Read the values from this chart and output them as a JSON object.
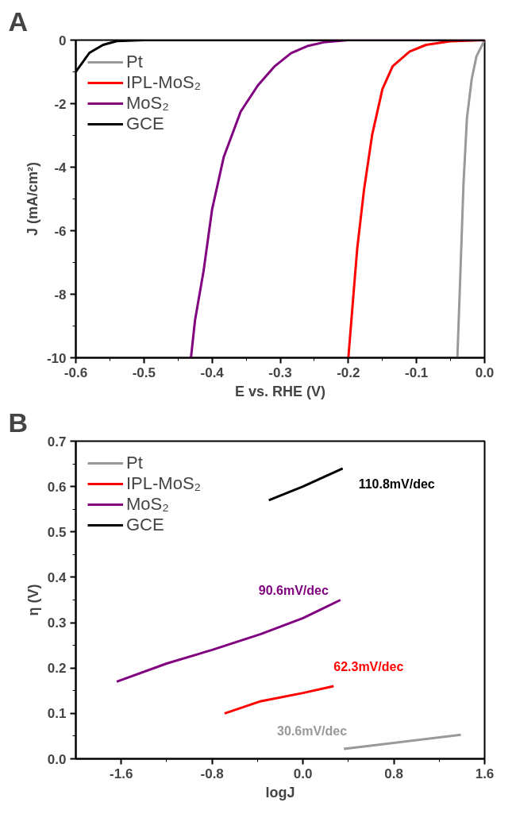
{
  "chart_data": [
    {
      "type": "line",
      "title": "A",
      "xlabel": "E vs. RHE (V)",
      "ylabel": "J (mA/cm²)",
      "xlim": [
        -0.6,
        0.0
      ],
      "ylim": [
        -10,
        0
      ],
      "xticks": [
        -0.6,
        -0.5,
        -0.4,
        -0.3,
        -0.2,
        -0.1,
        {
          "value": 0.0,
          "label": "0.0"
        }
      ],
      "yticks": [
        -10,
        -8,
        -6,
        -4,
        -2,
        0
      ],
      "legend": "top left",
      "grid": false,
      "series": [
        {
          "name": "Pt",
          "color": "#999999",
          "x": [
            -0.04,
            -0.036,
            -0.031,
            -0.026,
            -0.019,
            -0.012,
            0.0
          ],
          "values": [
            -10,
            -7.58,
            -4.51,
            -2.46,
            -1.23,
            -0.51,
            0
          ]
        },
        {
          "name": "IPL-MoS₂",
          "color": "#ff0000",
          "x": [
            -0.2,
            -0.194,
            -0.187,
            -0.177,
            -0.165,
            -0.15,
            -0.135,
            -0.11,
            -0.086,
            -0.051,
            0.0
          ],
          "values": [
            -10,
            -8.4,
            -6.56,
            -4.71,
            -2.97,
            -1.54,
            -0.82,
            -0.36,
            -0.15,
            -0.04,
            0
          ]
        },
        {
          "name": "MoS₂",
          "color": "#800080",
          "x": [
            -0.431,
            -0.425,
            -0.4125,
            -0.4,
            -0.383,
            -0.358,
            -0.333,
            -0.308,
            -0.284,
            -0.259,
            -0.234,
            -0.2,
            0.0
          ],
          "values": [
            -10,
            -8.81,
            -7.27,
            -5.33,
            -3.69,
            -2.25,
            -1.43,
            -0.82,
            -0.41,
            -0.18,
            -0.06,
            0,
            0
          ]
        },
        {
          "name": "GCE",
          "color": "#000000",
          "x": [
            -0.6,
            -0.58,
            -0.56,
            -0.54,
            -0.5,
            0.0
          ],
          "values": [
            -1.0,
            -0.4,
            -0.15,
            -0.03,
            0,
            0
          ]
        }
      ]
    },
    {
      "type": "line",
      "title": "B",
      "xlabel": "logJ",
      "ylabel": "η (V)",
      "xlim": [
        -2.0,
        1.6
      ],
      "ylim": [
        0.0,
        0.7
      ],
      "xticks": [
        -1.6,
        -0.8,
        {
          "value": 0.0,
          "label": "0.0"
        },
        0.8,
        1.6
      ],
      "yticks": [
        {
          "value": 0.0,
          "label": "0.0"
        },
        0.1,
        0.2,
        0.3,
        0.4,
        0.5,
        0.6,
        0.7
      ],
      "legend": "top left",
      "grid": false,
      "series": [
        {
          "name": "Pt",
          "color": "#999999",
          "x": [
            0.36,
            0.8,
            1.39
          ],
          "values": [
            0.022,
            0.035,
            0.053
          ]
        },
        {
          "name": "IPL-MoS₂",
          "color": "#ff0000",
          "x": [
            -0.69,
            -0.37,
            0.0,
            0.27
          ],
          "values": [
            0.1,
            0.127,
            0.145,
            0.16
          ]
        },
        {
          "name": "MoS₂",
          "color": "#800080",
          "x": [
            -1.64,
            -1.2,
            -0.8,
            -0.37,
            0.0,
            0.33
          ],
          "values": [
            0.17,
            0.21,
            0.24,
            0.275,
            0.31,
            0.35
          ]
        },
        {
          "name": "GCE",
          "color": "#000000",
          "x": [
            -0.3,
            0.0,
            0.35
          ],
          "values": [
            0.57,
            0.6,
            0.64
          ]
        }
      ],
      "annotations": [
        "30.6mV/dec",
        "62.3mV/dec",
        "90.6mV/dec",
        "110.8mV/dec"
      ]
    }
  ]
}
